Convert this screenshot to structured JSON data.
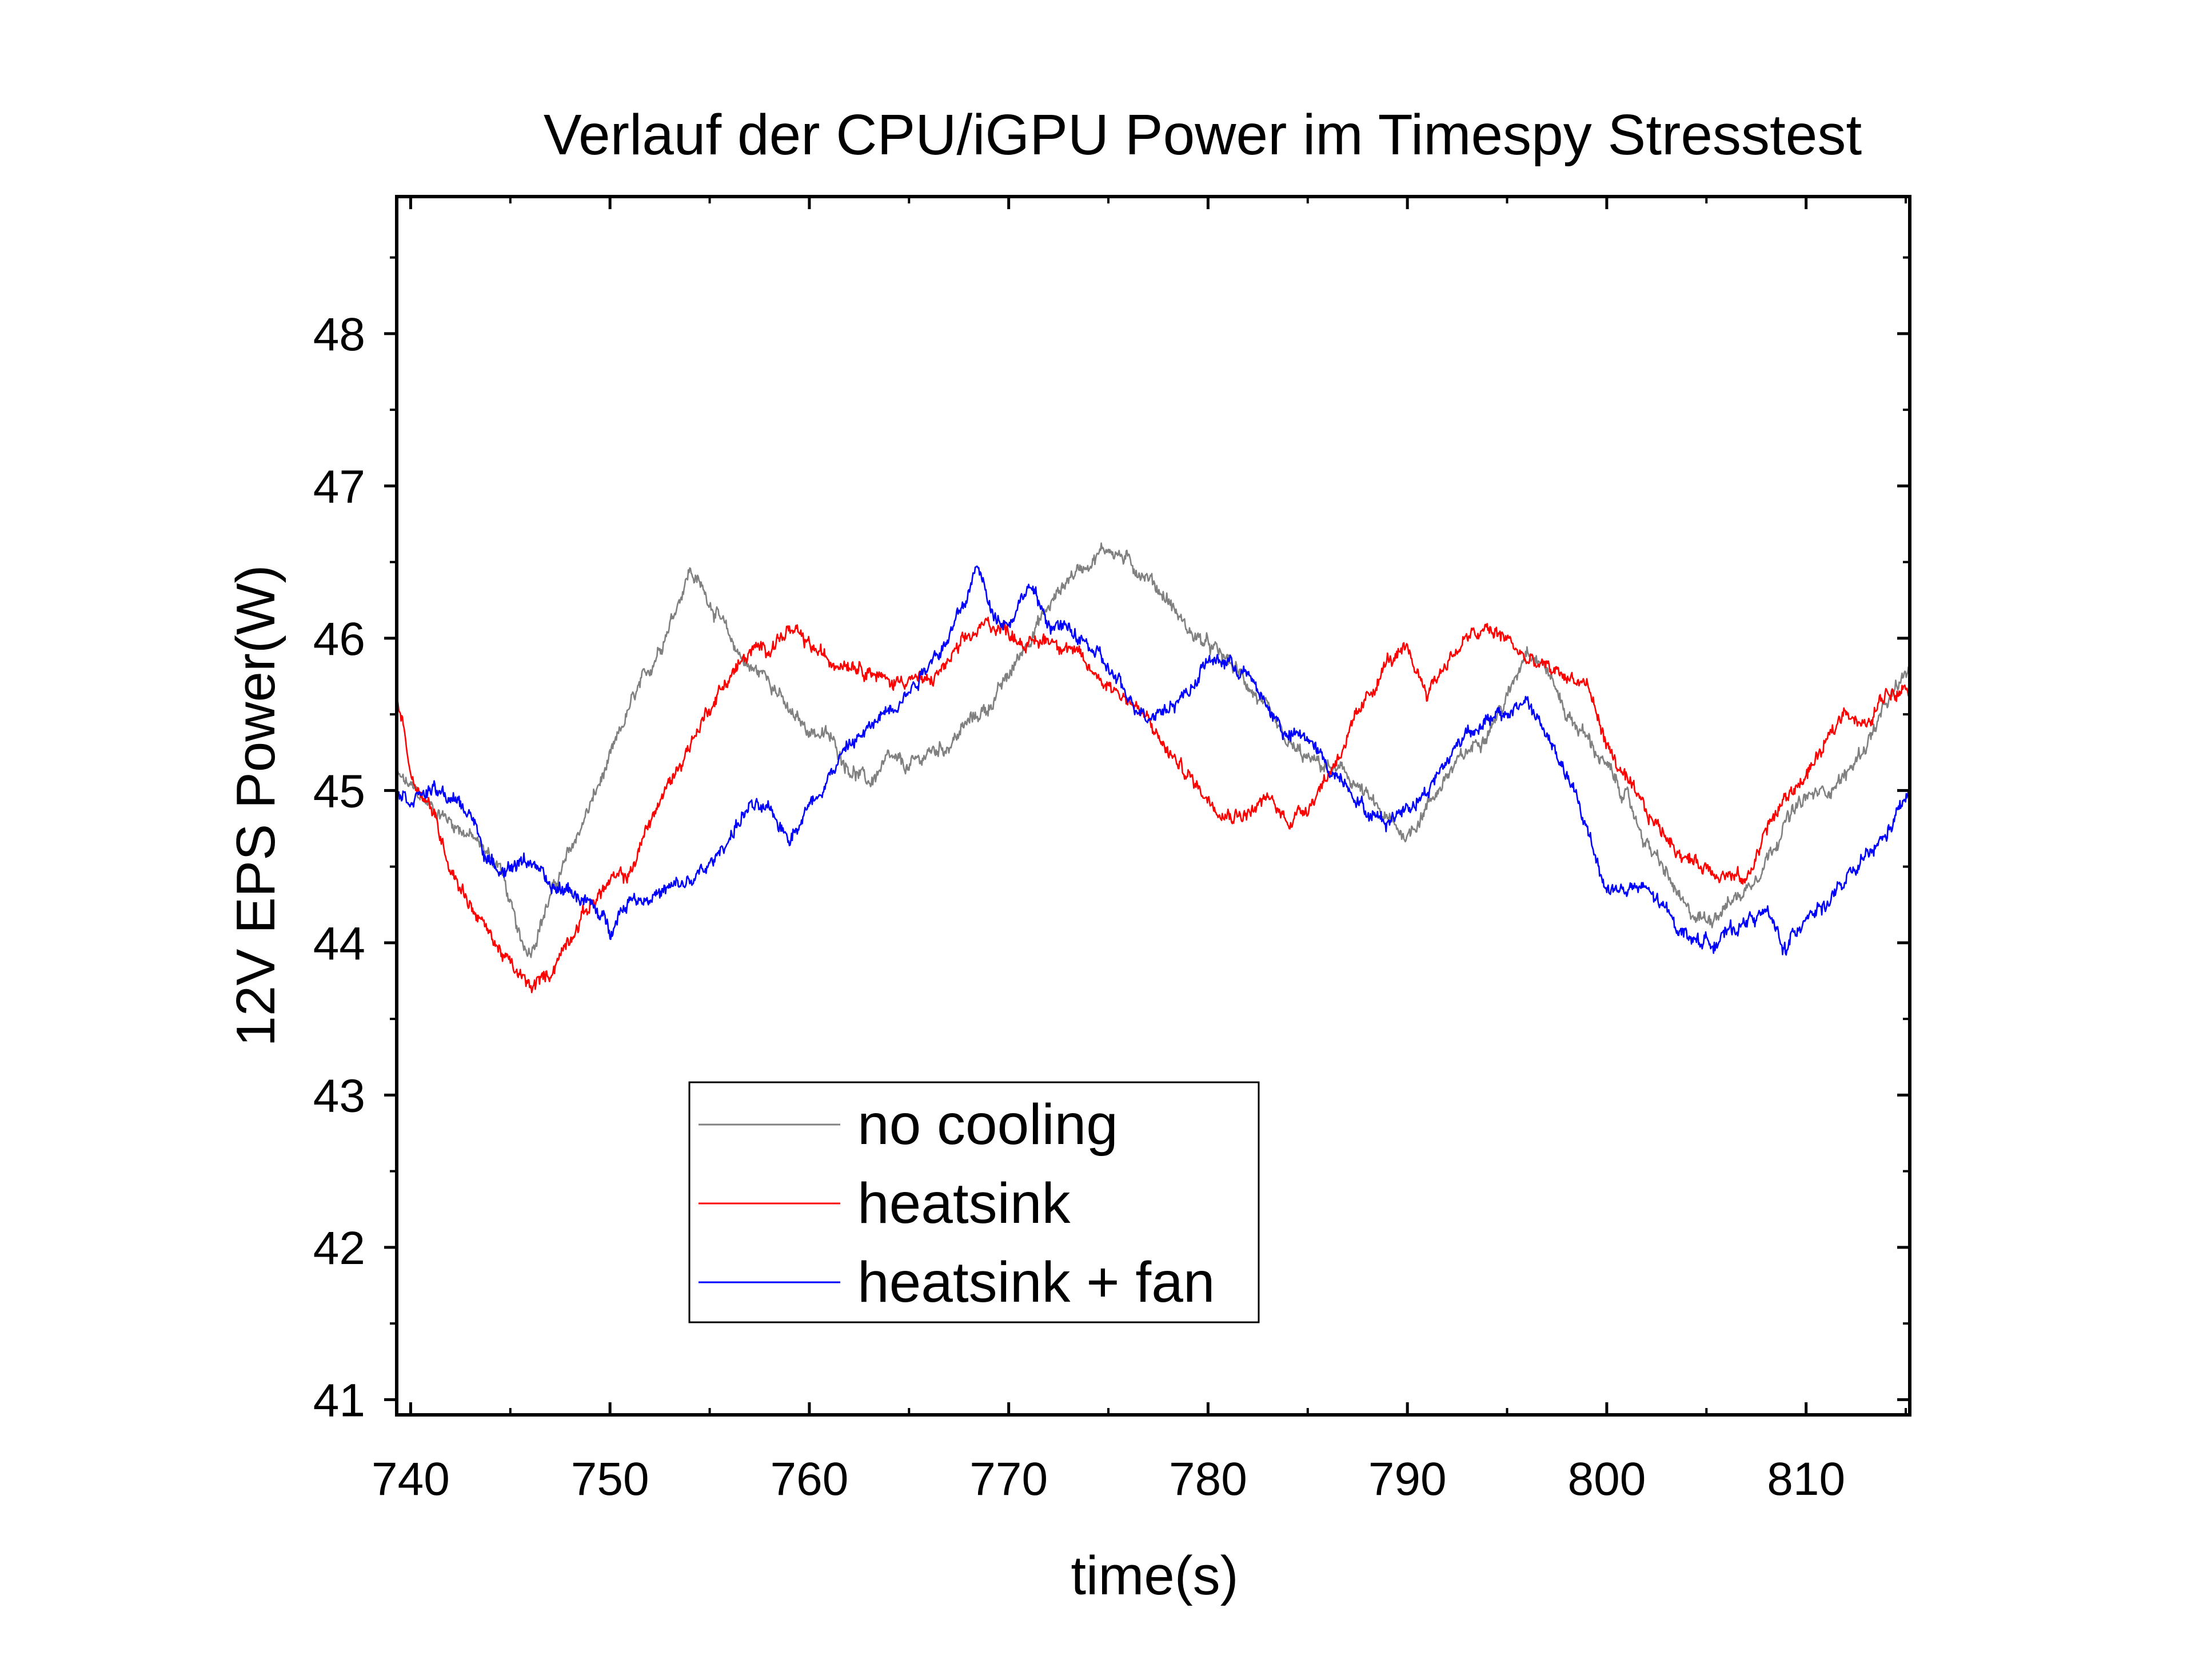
{
  "chart_data": {
    "type": "line",
    "title": "Verlauf der CPU/iGPU Power im Timespy Stresstest",
    "xlabel": "time(s)",
    "ylabel": "12V EPS Power(W)",
    "xlim": [
      739.3,
      815.2
    ],
    "ylim": [
      40.9,
      48.9
    ],
    "xticks": [
      740,
      750,
      760,
      770,
      780,
      790,
      800,
      810
    ],
    "xtick_labels": [
      "740",
      "750",
      "760",
      "770",
      "780",
      "790",
      "800",
      "810"
    ],
    "yticks": [
      41,
      42,
      43,
      44,
      45,
      46,
      47,
      48
    ],
    "ytick_labels": [
      "41",
      "42",
      "43",
      "44",
      "45",
      "46",
      "47",
      "48"
    ],
    "grid": false,
    "legend": "inside, lower-center",
    "series": [
      {
        "name": "no cooling",
        "color": "#808080",
        "points": [
          [
            739.3,
            45.1
          ],
          [
            741,
            44.9
          ],
          [
            743,
            44.7
          ],
          [
            744.5,
            44.5
          ],
          [
            745.5,
            44.0
          ],
          [
            746,
            43.95
          ],
          [
            747,
            44.3
          ],
          [
            748,
            44.6
          ],
          [
            749,
            44.9
          ],
          [
            750,
            45.2
          ],
          [
            751,
            45.55
          ],
          [
            752,
            45.8
          ],
          [
            753,
            46.1
          ],
          [
            754,
            46.45
          ],
          [
            755,
            46.25
          ],
          [
            756,
            46.0
          ],
          [
            757,
            45.8
          ],
          [
            758,
            45.75
          ],
          [
            759,
            45.5
          ],
          [
            760,
            45.4
          ],
          [
            761,
            45.35
          ],
          [
            762,
            45.15
          ],
          [
            763,
            45.05
          ],
          [
            764,
            45.2
          ],
          [
            765,
            45.15
          ],
          [
            766,
            45.25
          ],
          [
            767,
            45.3
          ],
          [
            768,
            45.45
          ],
          [
            769,
            45.55
          ],
          [
            770,
            45.75
          ],
          [
            771,
            46.0
          ],
          [
            772,
            46.2
          ],
          [
            773,
            46.4
          ],
          [
            774,
            46.5
          ],
          [
            775,
            46.6
          ],
          [
            776,
            46.5
          ],
          [
            777,
            46.4
          ],
          [
            778,
            46.25
          ],
          [
            779,
            46.05
          ],
          [
            780,
            45.95
          ],
          [
            781,
            45.85
          ],
          [
            782,
            45.7
          ],
          [
            783,
            45.5
          ],
          [
            784,
            45.3
          ],
          [
            785,
            45.2
          ],
          [
            786,
            45.15
          ],
          [
            787,
            45.1
          ],
          [
            788,
            44.95
          ],
          [
            789,
            44.8
          ],
          [
            790,
            44.7
          ],
          [
            791,
            44.9
          ],
          [
            792,
            45.1
          ],
          [
            793,
            45.25
          ],
          [
            794,
            45.4
          ],
          [
            795,
            45.6
          ],
          [
            796,
            45.95
          ],
          [
            797,
            45.8
          ],
          [
            798,
            45.5
          ],
          [
            799,
            45.35
          ],
          [
            800,
            45.15
          ],
          [
            801,
            44.95
          ],
          [
            802,
            44.65
          ],
          [
            803,
            44.45
          ],
          [
            804,
            44.2
          ],
          [
            805,
            44.15
          ],
          [
            806,
            44.25
          ],
          [
            807,
            44.35
          ],
          [
            808,
            44.55
          ],
          [
            809,
            44.8
          ],
          [
            810,
            44.95
          ],
          [
            811,
            45.0
          ],
          [
            812,
            45.1
          ],
          [
            813,
            45.3
          ],
          [
            814,
            45.55
          ],
          [
            815.2,
            45.8
          ]
        ]
      },
      {
        "name": "heatsink",
        "color": "#ff0000",
        "points": [
          [
            739.3,
            45.6
          ],
          [
            739.7,
            45.4
          ],
          [
            740,
            45.1
          ],
          [
            741,
            44.9
          ],
          [
            742,
            44.5
          ],
          [
            743,
            44.25
          ],
          [
            744,
            44.05
          ],
          [
            745,
            43.85
          ],
          [
            746,
            43.7
          ],
          [
            747,
            43.8
          ],
          [
            748,
            44.05
          ],
          [
            749,
            44.25
          ],
          [
            750,
            44.4
          ],
          [
            751,
            44.45
          ],
          [
            752,
            44.8
          ],
          [
            753,
            45.05
          ],
          [
            754,
            45.3
          ],
          [
            755,
            45.55
          ],
          [
            756,
            45.75
          ],
          [
            757,
            45.9
          ],
          [
            758,
            45.95
          ],
          [
            759,
            46.05
          ],
          [
            760,
            45.95
          ],
          [
            761,
            45.85
          ],
          [
            762,
            45.85
          ],
          [
            763,
            45.8
          ],
          [
            764,
            45.7
          ],
          [
            765,
            45.75
          ],
          [
            766,
            45.7
          ],
          [
            767,
            45.85
          ],
          [
            768,
            46.0
          ],
          [
            769,
            46.1
          ],
          [
            770,
            46.05
          ],
          [
            771,
            45.95
          ],
          [
            772,
            46.0
          ],
          [
            773,
            45.95
          ],
          [
            774,
            45.8
          ],
          [
            775,
            45.7
          ],
          [
            776,
            45.6
          ],
          [
            777,
            45.45
          ],
          [
            778,
            45.25
          ],
          [
            779,
            45.1
          ],
          [
            780,
            44.95
          ],
          [
            781,
            44.85
          ],
          [
            782,
            44.85
          ],
          [
            783,
            44.95
          ],
          [
            784,
            44.8
          ],
          [
            785,
            44.9
          ],
          [
            786,
            45.1
          ],
          [
            787,
            45.35
          ],
          [
            788,
            45.6
          ],
          [
            789,
            45.85
          ],
          [
            790,
            45.9
          ],
          [
            791,
            45.65
          ],
          [
            792,
            45.85
          ],
          [
            793,
            46.0
          ],
          [
            794,
            46.05
          ],
          [
            795,
            46.0
          ],
          [
            796,
            45.85
          ],
          [
            797,
            45.8
          ],
          [
            798,
            45.75
          ],
          [
            799,
            45.7
          ],
          [
            800,
            45.3
          ],
          [
            801,
            45.05
          ],
          [
            802,
            44.85
          ],
          [
            803,
            44.7
          ],
          [
            804,
            44.55
          ],
          [
            805,
            44.5
          ],
          [
            806,
            44.45
          ],
          [
            807,
            44.4
          ],
          [
            808,
            44.75
          ],
          [
            809,
            44.95
          ],
          [
            810,
            45.1
          ],
          [
            811,
            45.3
          ],
          [
            812,
            45.55
          ],
          [
            813,
            45.4
          ],
          [
            814,
            45.65
          ],
          [
            815.2,
            45.7
          ]
        ]
      },
      {
        "name": "heatsink + fan",
        "color": "#0000ff",
        "points": [
          [
            739.3,
            45.0
          ],
          [
            740,
            44.95
          ],
          [
            741,
            45.0
          ],
          [
            742,
            44.95
          ],
          [
            743,
            44.85
          ],
          [
            744,
            44.5
          ],
          [
            745,
            44.5
          ],
          [
            746,
            44.55
          ],
          [
            747,
            44.35
          ],
          [
            748,
            44.35
          ],
          [
            749,
            44.25
          ],
          [
            750,
            44.1
          ],
          [
            751,
            44.3
          ],
          [
            752,
            44.3
          ],
          [
            753,
            44.35
          ],
          [
            754,
            44.4
          ],
          [
            755,
            44.5
          ],
          [
            756,
            44.7
          ],
          [
            757,
            44.9
          ],
          [
            758,
            44.85
          ],
          [
            759,
            44.7
          ],
          [
            760,
            44.9
          ],
          [
            761,
            45.1
          ],
          [
            762,
            45.3
          ],
          [
            763,
            45.4
          ],
          [
            764,
            45.55
          ],
          [
            765,
            45.65
          ],
          [
            766,
            45.85
          ],
          [
            767,
            46.0
          ],
          [
            768,
            46.3
          ],
          [
            768.5,
            46.5
          ],
          [
            769,
            46.2
          ],
          [
            770,
            46.1
          ],
          [
            771,
            46.35
          ],
          [
            772,
            46.1
          ],
          [
            773,
            46.05
          ],
          [
            774,
            45.95
          ],
          [
            775,
            45.8
          ],
          [
            776,
            45.6
          ],
          [
            777,
            45.5
          ],
          [
            778,
            45.55
          ],
          [
            779,
            45.65
          ],
          [
            780,
            45.85
          ],
          [
            781,
            45.85
          ],
          [
            782,
            45.75
          ],
          [
            783,
            45.55
          ],
          [
            784,
            45.35
          ],
          [
            785,
            45.35
          ],
          [
            786,
            45.15
          ],
          [
            787,
            45.05
          ],
          [
            788,
            44.85
          ],
          [
            789,
            44.8
          ],
          [
            790,
            44.9
          ],
          [
            791,
            45.0
          ],
          [
            792,
            45.2
          ],
          [
            793,
            45.4
          ],
          [
            794,
            45.45
          ],
          [
            795,
            45.5
          ],
          [
            796,
            45.6
          ],
          [
            797,
            45.35
          ],
          [
            798,
            45.1
          ],
          [
            799,
            44.75
          ],
          [
            800,
            44.35
          ],
          [
            801,
            44.35
          ],
          [
            802,
            44.35
          ],
          [
            803,
            44.2
          ],
          [
            804,
            44.05
          ],
          [
            805,
            44.0
          ],
          [
            806,
            44.05
          ],
          [
            807,
            44.15
          ],
          [
            808,
            44.2
          ],
          [
            809,
            43.95
          ],
          [
            810,
            44.2
          ],
          [
            811,
            44.25
          ],
          [
            812,
            44.4
          ],
          [
            813,
            44.55
          ],
          [
            814,
            44.7
          ],
          [
            815.2,
            45.0
          ]
        ]
      }
    ]
  }
}
